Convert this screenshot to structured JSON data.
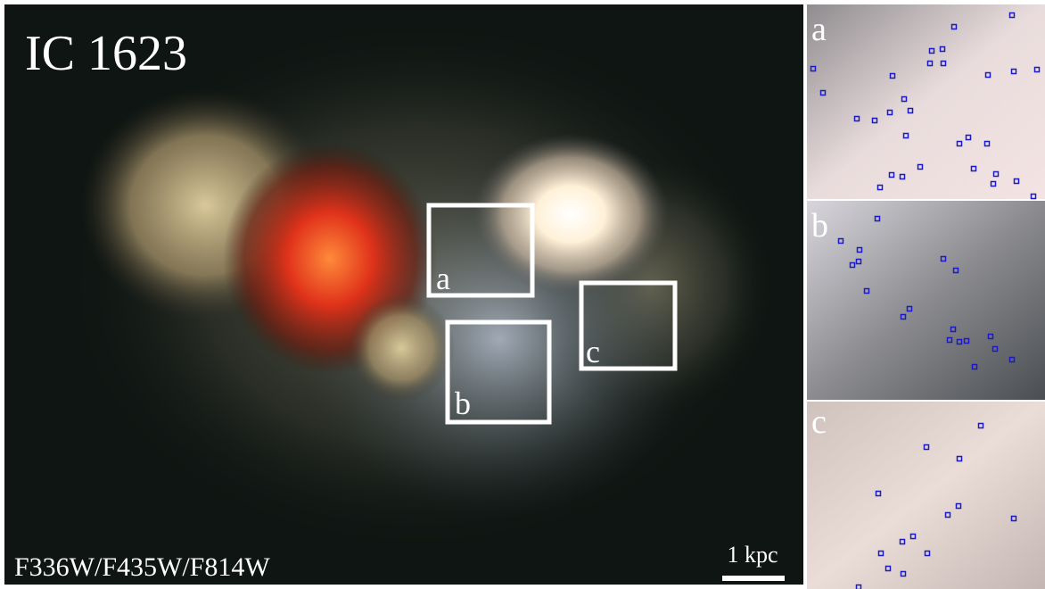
{
  "image": {
    "title": "IC 1623",
    "filters": "F336W/F435W/F814W",
    "scale_bar": "1 kpc",
    "regions": [
      "a",
      "b",
      "c"
    ],
    "zoom_panels": [
      "a",
      "b",
      "c"
    ]
  }
}
